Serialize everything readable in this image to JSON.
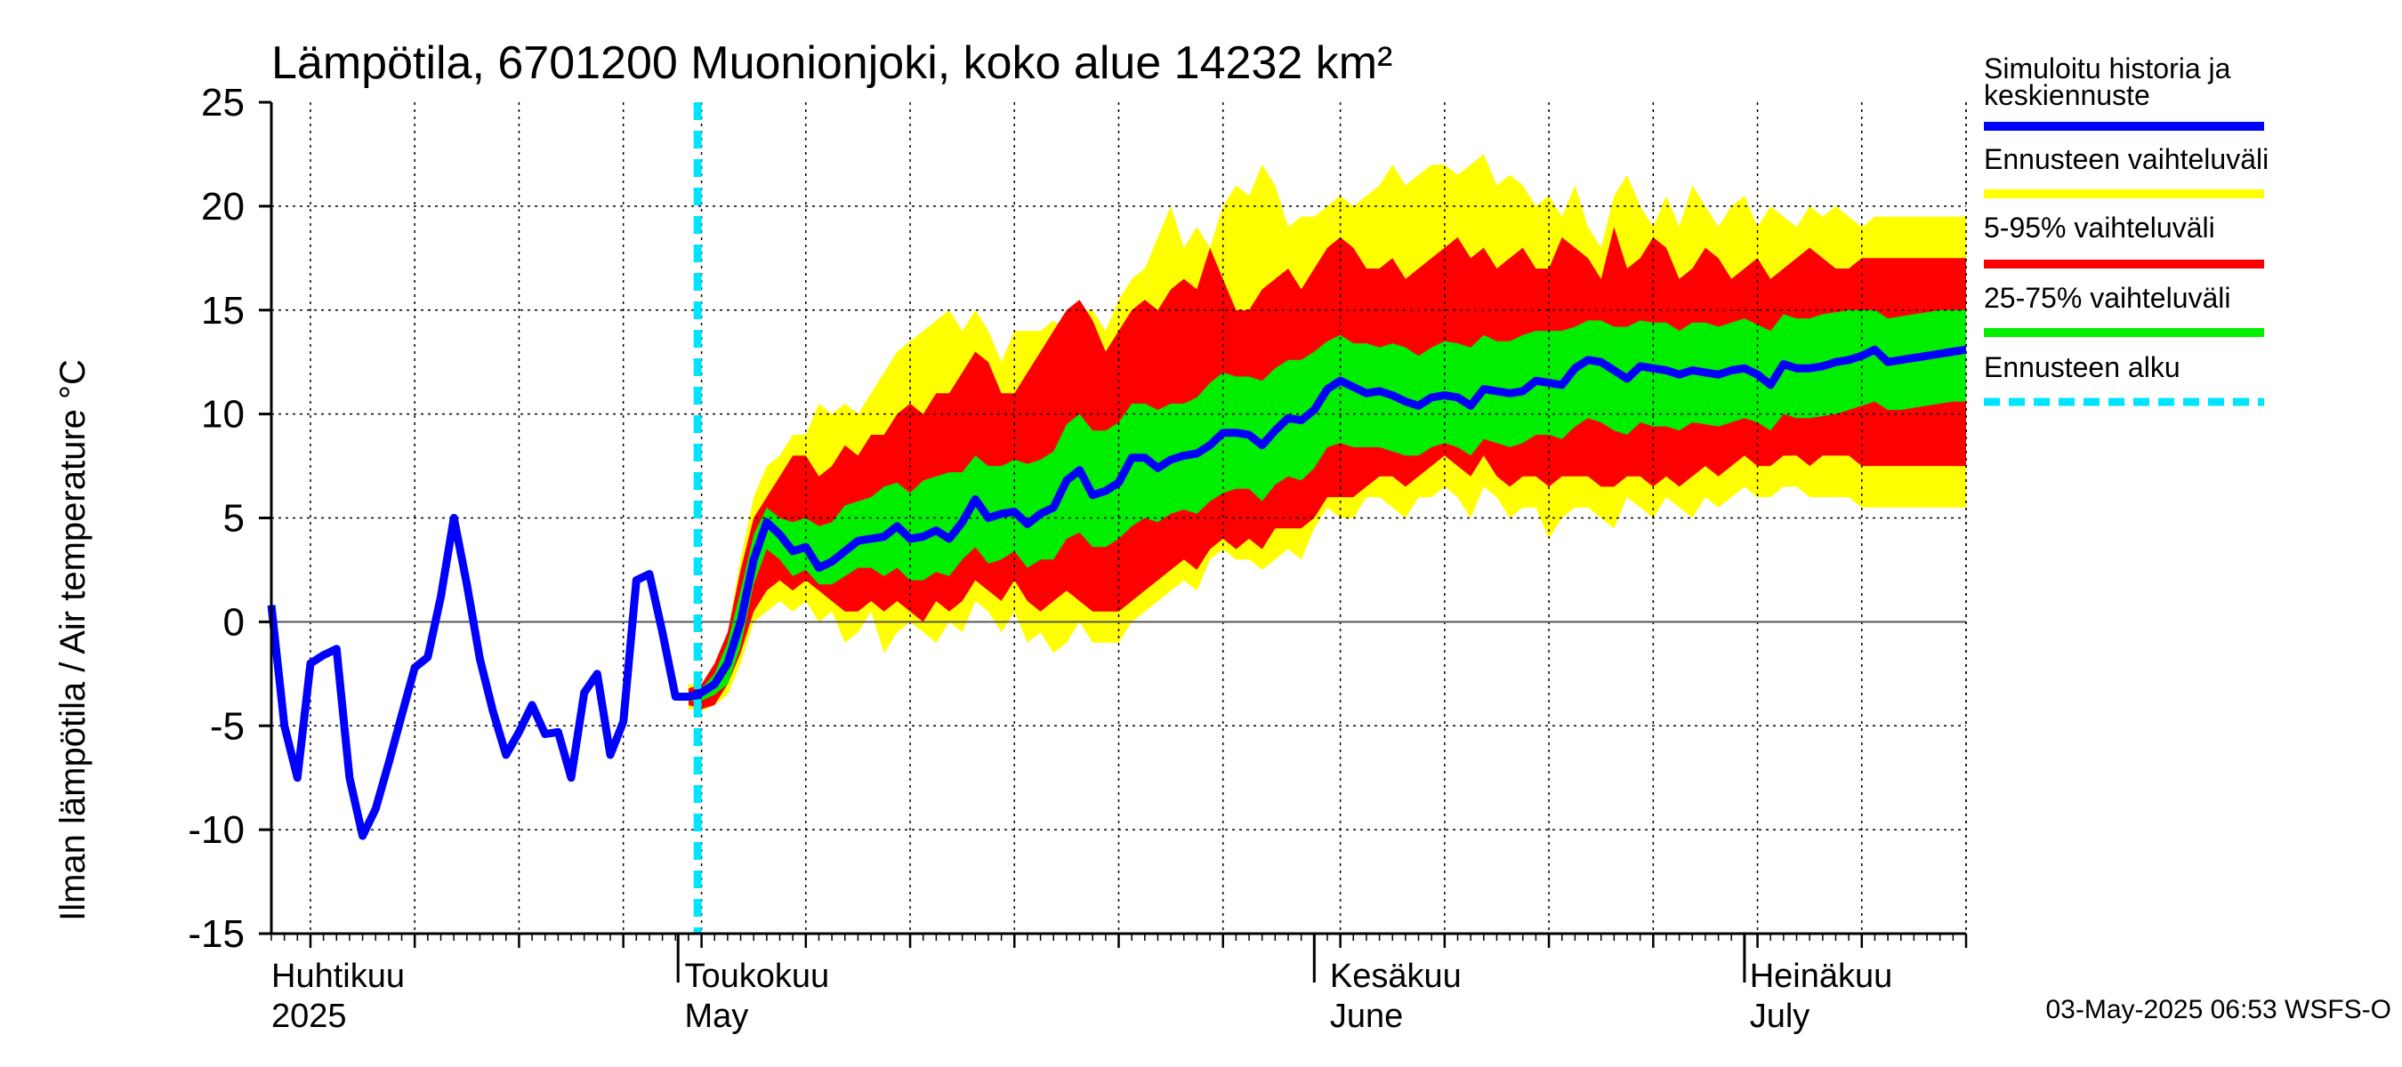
{
  "chart_data": {
    "type": "area",
    "title": "Lämpötila, 6701200 Muonionjoki, koko alue 14232 km²",
    "ylabel": "Ilman lämpötila / Air temperature   °C",
    "ylim": [
      -15,
      25
    ],
    "yticks": [
      "25",
      "20",
      "15",
      "10",
      "5",
      "0",
      "-5",
      "-10",
      "-15"
    ],
    "grid": true,
    "legend_position": "right",
    "x_month_labels": [
      {
        "line1": "Huhtikuu",
        "line2": "2025"
      },
      {
        "line1": "Toukokuu",
        "line2": "May"
      },
      {
        "line1": "Kesäkuu",
        "line2": "June"
      },
      {
        "line1": "Heinäkuu",
        "line2": "July"
      }
    ],
    "forecast_start_day": 32.7,
    "history": {
      "name": "Simuloitu historia ja keskiennuste",
      "x": [
        0,
        1,
        2,
        3,
        4,
        5,
        6,
        7,
        8,
        9,
        10,
        11,
        12,
        13,
        14,
        15,
        16,
        17,
        18,
        19,
        20,
        21,
        22,
        23,
        24,
        25,
        26,
        27,
        28,
        29,
        30,
        31,
        32,
        33
      ],
      "y": [
        0.8,
        -5,
        -7.5,
        -2,
        -1.6,
        -1.3,
        -7.5,
        -10.3,
        -9,
        -6.8,
        -4.5,
        -2.2,
        -1.7,
        1.2,
        5,
        1.8,
        -1.8,
        -4.3,
        -6.4,
        -5.3,
        -4,
        -5.4,
        -5.3,
        -7.5,
        -3.4,
        -2.5,
        -6.4,
        -4.8,
        2,
        2.3,
        -0.5,
        -3.6,
        -3.6,
        -3.5
      ]
    },
    "forecast_days": [
      32,
      33,
      34,
      35,
      36,
      37,
      38,
      39,
      40,
      41,
      42,
      43,
      44,
      45,
      46,
      47,
      48,
      49,
      50,
      51,
      52,
      53,
      54,
      55,
      56,
      57,
      58,
      59,
      60,
      61,
      62,
      63,
      64,
      65,
      66,
      67,
      68,
      69,
      70,
      71,
      72,
      73,
      74,
      75,
      76,
      77,
      78,
      79,
      80,
      81,
      82,
      83,
      84,
      85,
      86,
      87,
      88,
      89,
      90,
      91,
      92,
      93,
      94,
      95,
      96,
      97,
      98,
      99,
      100,
      101,
      102,
      103,
      104,
      105,
      106,
      107,
      108,
      109,
      110,
      111,
      112,
      113,
      114,
      115,
      116,
      117,
      118,
      119,
      120,
      121,
      122,
      123,
      124,
      125,
      126,
      127,
      128,
      129,
      130
    ],
    "median": {
      "name": "Simuloitu historia ja keskiennuste",
      "values": [
        -3.6,
        -3.4,
        -3,
        -2,
        0,
        3,
        4.8,
        4.2,
        3.4,
        3.6,
        2.6,
        2.9,
        3.4,
        3.9,
        4,
        4.1,
        4.6,
        4,
        4.1,
        4.4,
        4,
        4.8,
        5.9,
        5,
        5.2,
        5.3,
        4.7,
        5.2,
        5.5,
        6.8,
        7.3,
        6.1,
        6.3,
        6.7,
        7.9,
        7.9,
        7.4,
        7.8,
        8,
        8.1,
        8.5,
        9.1,
        9.1,
        9,
        8.5,
        9.2,
        9.8,
        9.7,
        10.2,
        11.2,
        11.6,
        11.3,
        11,
        11.1,
        10.9,
        10.6,
        10.4,
        10.8,
        10.9,
        10.8,
        10.4,
        11.2,
        11.1,
        11,
        11.1,
        11.6,
        11.5,
        11.4,
        12.2,
        12.6,
        12.5,
        12.1,
        11.7,
        12.3,
        12.2,
        12.1,
        11.9,
        12.1,
        12,
        11.9,
        12.1,
        12.2,
        11.9,
        11.4,
        12.4,
        12.2,
        12.2,
        12.3,
        12.5,
        12.6,
        12.8,
        13.1,
        12.5,
        12.6,
        12.7,
        12.8,
        12.9,
        13,
        13.1
      ]
    },
    "bands": [
      {
        "name": "Ennusteen vaihteluväli",
        "color": "#ffff00",
        "upper": [
          -3,
          -3,
          -2,
          -0.5,
          3,
          6,
          7.5,
          8,
          9,
          9,
          10.5,
          10,
          10.5,
          10,
          11,
          12,
          13,
          13.5,
          14,
          14.5,
          15,
          14,
          15,
          14,
          12.5,
          14,
          14,
          14,
          14.5,
          14,
          15,
          15,
          14,
          15.5,
          16.5,
          17,
          18.5,
          20,
          18,
          19,
          18,
          20,
          21,
          20.5,
          22,
          21,
          19,
          19.5,
          19.5,
          20,
          20.5,
          20,
          20.5,
          21,
          22,
          21,
          21.5,
          22,
          22,
          21.5,
          22,
          22.5,
          21,
          21.5,
          21,
          20,
          20.5,
          19.5,
          21,
          19,
          18,
          20.5,
          21.5,
          20,
          19,
          20.5,
          19,
          21,
          20,
          19,
          20,
          20.5,
          19,
          20,
          19.5,
          19,
          20,
          19.5,
          20,
          19.5,
          19,
          19.5,
          19.5,
          19.5,
          19.5,
          19.5,
          19.5,
          19.5,
          19.5
        ],
        "lower": [
          -4.2,
          -4.3,
          -4,
          -3.5,
          -2,
          0,
          0.5,
          1,
          0.5,
          1,
          0,
          0.5,
          -1,
          -0.5,
          0.5,
          -1.5,
          -0.5,
          0,
          -0.5,
          -1,
          0,
          -0.5,
          1,
          0.5,
          -0.5,
          0.5,
          -1,
          -0.5,
          -1.5,
          -1,
          0,
          -1,
          -1,
          -1,
          0,
          0.5,
          1,
          1.5,
          2,
          1.5,
          3,
          3.5,
          3,
          3,
          2.5,
          3,
          3.5,
          3,
          4.5,
          5.5,
          5,
          5,
          6,
          6,
          5.5,
          5,
          6,
          6,
          6.5,
          6,
          5,
          6.5,
          6,
          5,
          5.5,
          5.5,
          4,
          5,
          5.5,
          5.5,
          5,
          4.5,
          6,
          5.5,
          5,
          6,
          5.5,
          5,
          6,
          5.5,
          6,
          6.5,
          6,
          6,
          6.5,
          6.5,
          6,
          6,
          6,
          6,
          5.5,
          5.5,
          5.5,
          5.5,
          5.5,
          5.5,
          5.5,
          5.5,
          5.5
        ]
      },
      {
        "name": "5-95% vaihteluväli",
        "color": "#ff0000",
        "upper": [
          -3.2,
          -3,
          -2,
          -0.5,
          2.5,
          5,
          6,
          7,
          8,
          8,
          7,
          7.5,
          8.5,
          8,
          9,
          9,
          10,
          10.5,
          10,
          11,
          11,
          12,
          13,
          12.5,
          11,
          11,
          12,
          13,
          14,
          15,
          15.5,
          14.5,
          13,
          14,
          15,
          15.5,
          15,
          16,
          16.5,
          16,
          18,
          16.5,
          15,
          15,
          16,
          16.5,
          17,
          16,
          17,
          18,
          18.5,
          18,
          17,
          17,
          17.5,
          16.5,
          17,
          17.5,
          18,
          18.5,
          17.5,
          18,
          17,
          17.5,
          18,
          17,
          17,
          18.5,
          18,
          17.5,
          16.5,
          19,
          17,
          17.5,
          18.5,
          18,
          16.5,
          17,
          18,
          17.5,
          16.5,
          17,
          17.5,
          16.5,
          17,
          17.5,
          18,
          17.5,
          17,
          17,
          17.5,
          17.5,
          17.5,
          17.5,
          17.5,
          17.5,
          17.5,
          17.5,
          17.5
        ],
        "lower": [
          -4,
          -4.2,
          -4,
          -3,
          -1.5,
          0.5,
          1.5,
          2,
          1.5,
          2,
          1.5,
          1,
          0.5,
          0.5,
          1,
          0.5,
          1,
          0.5,
          0,
          1,
          0.5,
          1,
          2,
          1.5,
          1,
          2,
          1,
          0.5,
          1,
          1.5,
          1,
          0.5,
          0.5,
          0.5,
          1,
          1.5,
          2,
          2.5,
          3,
          2.5,
          3.5,
          4,
          3.5,
          4,
          3.5,
          4.5,
          4.5,
          4.5,
          5,
          6,
          6,
          6,
          6.5,
          7,
          7,
          6.5,
          7,
          7.5,
          8,
          7.5,
          7,
          8,
          7,
          6.5,
          7,
          7,
          6.5,
          7,
          7,
          7,
          6.5,
          6.5,
          7,
          7,
          6.5,
          7,
          6.5,
          7,
          7.5,
          7,
          7.5,
          8,
          7.5,
          7.5,
          8,
          8,
          7.5,
          8,
          8,
          8,
          7.5,
          7.5,
          7.5,
          7.5,
          7.5,
          7.5,
          7.5,
          7.5,
          7.5
        ]
      },
      {
        "name": "25-75% vaihteluväli",
        "color": "#00ee00",
        "upper": [
          -3.4,
          -3.2,
          -2.5,
          -1,
          1.5,
          4.2,
          5.5,
          5,
          4.8,
          5,
          4.6,
          4.8,
          5.6,
          5.8,
          6,
          6.5,
          6.7,
          6.2,
          6.8,
          7,
          7.2,
          7.2,
          8,
          7.5,
          7.5,
          7.8,
          7.6,
          7.8,
          8.2,
          9.5,
          10,
          9.2,
          9.2,
          9.6,
          10.5,
          10.5,
          10.2,
          10.5,
          10.5,
          10.8,
          11.5,
          12,
          11.8,
          11.8,
          11.6,
          12.2,
          12.6,
          12.6,
          13,
          13.5,
          13.8,
          13.4,
          13.4,
          13.2,
          13.4,
          13.2,
          12.8,
          13.2,
          13.5,
          13.4,
          13.2,
          13.8,
          13.5,
          13.5,
          13.8,
          14,
          14,
          14,
          14.2,
          14.5,
          14.5,
          14.2,
          14.2,
          14.5,
          14.4,
          14.4,
          14,
          14.4,
          14.4,
          14.2,
          14.4,
          14.6,
          14.3,
          14,
          14.8,
          14.6,
          14.6,
          14.8,
          14.9,
          15,
          15,
          15,
          14.6,
          14.7,
          14.8,
          14.9,
          15,
          15,
          15
        ],
        "lower": [
          -3.8,
          -3.8,
          -3.5,
          -3,
          -1.2,
          1.8,
          3.5,
          3,
          2.2,
          2.5,
          1.8,
          1.8,
          2.2,
          2.6,
          2.6,
          2.2,
          2.6,
          2,
          2,
          2.4,
          2.2,
          3,
          3.6,
          2.8,
          3,
          3.4,
          2.6,
          3,
          3,
          4,
          4.3,
          3.6,
          3.6,
          4,
          4.6,
          5,
          4.8,
          5.2,
          5.4,
          5.2,
          5.8,
          6.2,
          6.4,
          6.4,
          5.8,
          6.6,
          7,
          6.8,
          7.4,
          8.4,
          8.6,
          8.4,
          8.4,
          8.4,
          8.2,
          8,
          8,
          8.4,
          8.6,
          8.4,
          8,
          8.8,
          8.6,
          8.4,
          8.6,
          9,
          9,
          8.8,
          9.4,
          9.8,
          9.6,
          9.2,
          9,
          9.6,
          9.4,
          9.4,
          9.2,
          9.6,
          9.5,
          9.4,
          9.6,
          9.8,
          9.6,
          9.2,
          10,
          9.8,
          9.8,
          9.9,
          10,
          10.2,
          10.4,
          10.6,
          10.2,
          10.2,
          10.3,
          10.4,
          10.5,
          10.6,
          10.6
        ]
      }
    ]
  },
  "legend": {
    "items": [
      {
        "label": "Simuloitu historia ja keskiennuste",
        "line1": "Simuloitu historia ja",
        "line2": "keskiennuste",
        "color": "#0000ff",
        "style": "solid"
      },
      {
        "label": "Ennusteen vaihteluväli",
        "color": "#ffff00",
        "style": "solid"
      },
      {
        "label": "5-95% vaihteluväli",
        "color": "#ff0000",
        "style": "solid"
      },
      {
        "label": "25-75% vaihteluväli",
        "color": "#00ee00",
        "style": "solid"
      },
      {
        "label": "Ennusteen alku",
        "color": "#00e5ff",
        "style": "dashed"
      }
    ]
  },
  "footer": "03-May-2025 06:53 WSFS-O"
}
